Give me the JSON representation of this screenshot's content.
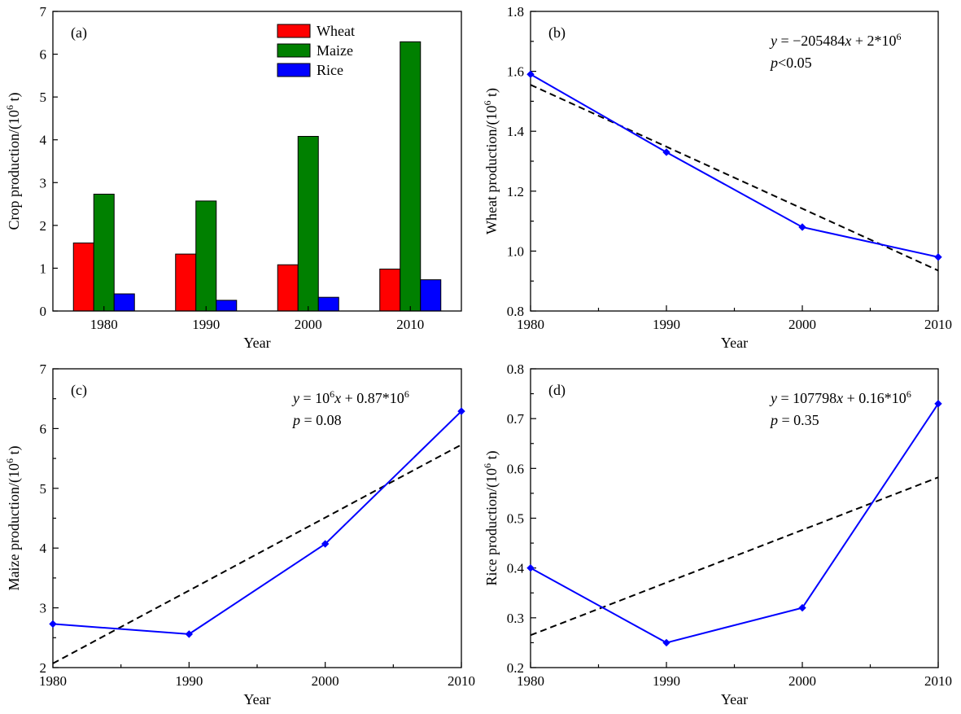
{
  "colors": {
    "wheat": "#ff0000",
    "maize": "#008000",
    "rice": "#0000ff",
    "line": "#0000ff",
    "fit": "#000000"
  },
  "chart_data": [
    {
      "id": "a",
      "type": "bar",
      "panel_label": "(a)",
      "xlabel": "Year",
      "ylabel": "Crop production/(10",
      "ylabel_sup": "6",
      "ylabel_tail": " t)",
      "categories": [
        "1980",
        "1990",
        "2000",
        "2010"
      ],
      "ylim": [
        0,
        7
      ],
      "yticks": [
        0,
        1,
        2,
        3,
        4,
        5,
        6,
        7
      ],
      "legend_position": "top-center",
      "series": [
        {
          "name": "Wheat",
          "color_key": "wheat",
          "values": [
            1.59,
            1.33,
            1.08,
            0.98
          ]
        },
        {
          "name": "Maize",
          "color_key": "maize",
          "values": [
            2.73,
            2.57,
            4.08,
            6.29
          ]
        },
        {
          "name": "Rice",
          "color_key": "rice",
          "values": [
            0.4,
            0.25,
            0.32,
            0.73
          ]
        }
      ]
    },
    {
      "id": "b",
      "type": "line",
      "panel_label": "(b)",
      "xlabel": "Year",
      "ylabel": "Wheat production/(10",
      "ylabel_sup": "6",
      "ylabel_tail": " t)",
      "x": [
        1980,
        1990,
        2000,
        2010
      ],
      "y": [
        1.59,
        1.33,
        1.08,
        0.98
      ],
      "xlim": [
        1980,
        2010
      ],
      "ylim": [
        0.8,
        1.8
      ],
      "xticks": [
        1980,
        1990,
        2000,
        2010
      ],
      "yticks": [
        0.8,
        1.0,
        1.2,
        1.4,
        1.6,
        1.8
      ],
      "ytick_labels": [
        "0.8",
        "1.0",
        "1.2",
        "1.4",
        "1.6",
        "1.8"
      ],
      "trend": {
        "y_start": 1.555,
        "y_end": 0.935
      },
      "equation": {
        "prefix": "y",
        "body": " = −205484",
        "xvar": "x",
        "tail": " + 2*10",
        "sup": "6"
      },
      "pvalue": {
        "p": "p",
        "text": "<0.05"
      }
    },
    {
      "id": "c",
      "type": "line",
      "panel_label": "(c)",
      "xlabel": "Year",
      "ylabel": "Maize production/(10",
      "ylabel_sup": "6",
      "ylabel_tail": " t)",
      "x": [
        1980,
        1990,
        2000,
        2010
      ],
      "y": [
        2.73,
        2.56,
        4.07,
        6.29
      ],
      "xlim": [
        1980,
        2010
      ],
      "ylim": [
        2,
        7
      ],
      "xticks": [
        1980,
        1990,
        2000,
        2010
      ],
      "yticks": [
        2,
        3,
        4,
        5,
        6,
        7
      ],
      "ytick_labels": [
        "2",
        "3",
        "4",
        "5",
        "6",
        "7"
      ],
      "trend": {
        "y_start": 2.07,
        "y_end": 5.73
      },
      "equation": {
        "prefix": "y",
        "body": " = 10",
        "sup1": "6",
        "xvar": "x",
        "tail": " + 0.87*10",
        "sup": "6"
      },
      "pvalue": {
        "p": "p",
        "text": " = 0.08"
      }
    },
    {
      "id": "d",
      "type": "line",
      "panel_label": "(d)",
      "xlabel": "Year",
      "ylabel": "Rice production/(10",
      "ylabel_sup": "6",
      "ylabel_tail": " t)",
      "x": [
        1980,
        1990,
        2000,
        2010
      ],
      "y": [
        0.4,
        0.25,
        0.32,
        0.73
      ],
      "xlim": [
        1980,
        2010
      ],
      "ylim": [
        0.2,
        0.8
      ],
      "xticks": [
        1980,
        1990,
        2000,
        2010
      ],
      "yticks": [
        0.2,
        0.3,
        0.4,
        0.5,
        0.6,
        0.7,
        0.8
      ],
      "ytick_labels": [
        "0.2",
        "0.3",
        "0.4",
        "0.5",
        "0.6",
        "0.7",
        "0.8"
      ],
      "trend": {
        "y_start": 0.265,
        "y_end": 0.582
      },
      "equation": {
        "prefix": "y",
        "body": " = 107798",
        "xvar": "x",
        "tail": " + 0.16*10",
        "sup": "6"
      },
      "pvalue": {
        "p": "p",
        "text": " = 0.35"
      }
    }
  ]
}
